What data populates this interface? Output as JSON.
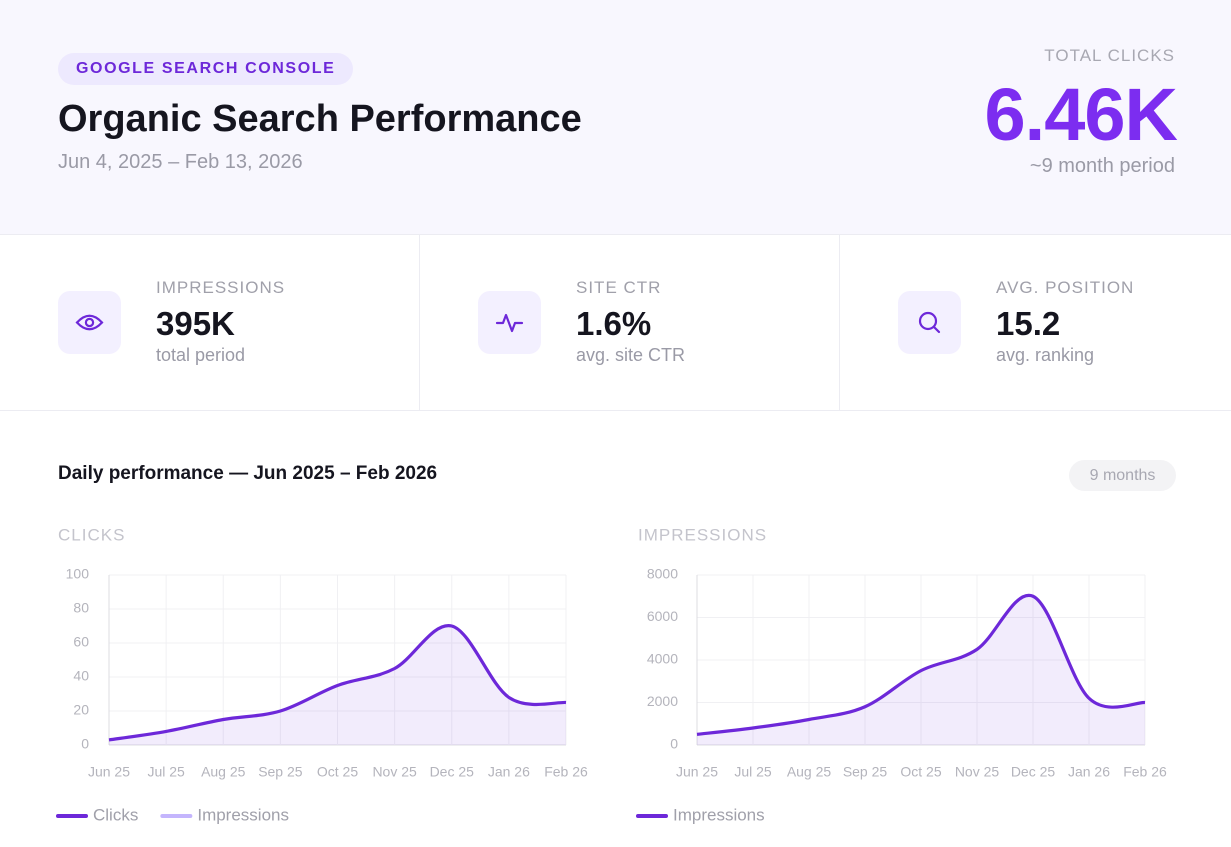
{
  "header": {
    "badge": "GOOGLE SEARCH CONSOLE",
    "title": "Organic Search Performance",
    "date_range": "Jun 4, 2025 – Feb 13, 2026",
    "total_label": "TOTAL CLICKS",
    "total_value": "6.46K",
    "total_note": "~9 month period"
  },
  "stats": [
    {
      "label": "IMPRESSIONS",
      "value": "395K",
      "note": "total period"
    },
    {
      "label": "SITE CTR",
      "value": "1.6%",
      "note": "avg. site CTR"
    },
    {
      "label": "AVG. POSITION",
      "value": "15.2",
      "note": "avg. ranking"
    }
  ],
  "section": {
    "title": "Daily performance — Jun 2025 – Feb 2026",
    "pill": "9 months"
  },
  "chart_data": [
    {
      "type": "line",
      "title": "CLICKS",
      "categories": [
        "Jun 25",
        "Jul 25",
        "Aug 25",
        "Sep 25",
        "Oct 25",
        "Nov 25",
        "Dec 25",
        "Jan 26",
        "Feb 26"
      ],
      "series": [
        {
          "name": "Clicks",
          "color": "#6d28d9",
          "values": [
            3,
            8,
            15,
            20,
            35,
            45,
            70,
            28,
            25
          ]
        }
      ],
      "extra_legend": [
        {
          "name": "Impressions",
          "color": "#c4b5fd"
        }
      ],
      "ylim": [
        0,
        100
      ],
      "yticks": [
        0,
        20,
        40,
        60,
        80,
        100
      ],
      "grid": true
    },
    {
      "type": "line",
      "title": "IMPRESSIONS",
      "categories": [
        "Jun 25",
        "Jul 25",
        "Aug 25",
        "Sep 25",
        "Oct 25",
        "Nov 25",
        "Dec 25",
        "Jan 26",
        "Feb 26"
      ],
      "series": [
        {
          "name": "Impressions",
          "color": "#6d28d9",
          "values": [
            500,
            800,
            1200,
            1800,
            3500,
            4500,
            7000,
            2200,
            2000
          ]
        }
      ],
      "ylim": [
        0,
        8000
      ],
      "yticks": [
        0,
        2000,
        4000,
        6000,
        8000
      ],
      "grid": true
    }
  ]
}
